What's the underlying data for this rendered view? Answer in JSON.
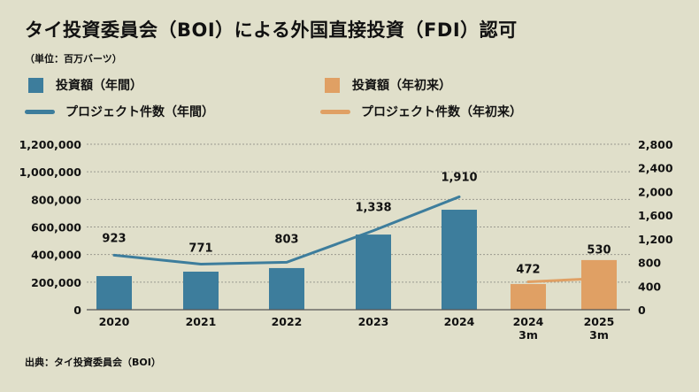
{
  "title": "タイ投資委員会（BOI）による外国直接投資（FDI）認可",
  "unit": "（単位：百万バーツ）",
  "legend": [
    {
      "label": "投資額（年間）",
      "color": "#3d7d9c",
      "kind": "bar"
    },
    {
      "label": "投資額（年初来）",
      "color": "#e0a064",
      "kind": "bar"
    },
    {
      "label": "プロジェクト件数（年間）",
      "color": "#3d7d9c",
      "kind": "line"
    },
    {
      "label": "プロジェクト件数（年初来）",
      "color": "#e0a064",
      "kind": "line"
    }
  ],
  "source": "出典：タイ投資委員会（BOI）",
  "chart_data": {
    "type": "bar+line",
    "categories": [
      [
        "2020"
      ],
      [
        "2021"
      ],
      [
        "2022"
      ],
      [
        "2023"
      ],
      [
        "2024"
      ],
      [
        "2024",
        "3m"
      ],
      [
        "2025",
        "3m"
      ]
    ],
    "left_axis": {
      "range": [
        0,
        1200000
      ],
      "ticks": [
        "0",
        "200,000",
        "400,000",
        "600,000",
        "800,000",
        "1,000,000",
        "1,200,000"
      ]
    },
    "right_axis": {
      "range": [
        0,
        2800
      ],
      "ticks": [
        "0",
        "400",
        "800",
        "1,200",
        "1,600",
        "2,000",
        "2,400",
        "2,800"
      ]
    },
    "investment_annual": [
      244000,
      276000,
      302000,
      545000,
      725000,
      null,
      null
    ],
    "investment_ytd": [
      null,
      null,
      null,
      null,
      null,
      186000,
      360000
    ],
    "projects_annual": [
      923,
      771,
      803,
      1338,
      1910,
      null,
      null
    ],
    "projects_ytd": [
      null,
      null,
      null,
      null,
      null,
      472,
      530
    ],
    "project_labels": [
      "923",
      "771",
      "803",
      "1,338",
      "1,910",
      "472",
      "530"
    ],
    "grid": true
  }
}
